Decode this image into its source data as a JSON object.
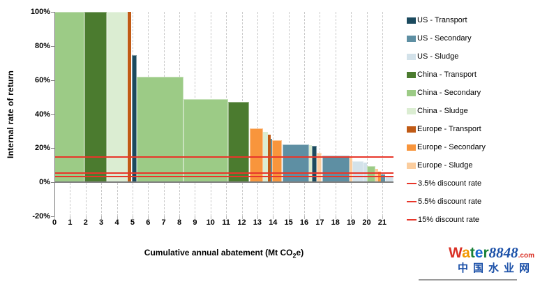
{
  "axes": {
    "y_title": "Internal rate of return",
    "x_title_prefix": "Cumulative annual abatement (Mt CO",
    "x_title_sub": "2",
    "x_title_suffix": "e)",
    "y_ticks": [
      {
        "label": "100%",
        "value": 100
      },
      {
        "label": "80%",
        "value": 80
      },
      {
        "label": "60%",
        "value": 60
      },
      {
        "label": "40%",
        "value": 40
      },
      {
        "label": "20%",
        "value": 20
      },
      {
        "label": "0%",
        "value": 0
      },
      {
        "label": "-20%",
        "value": -20
      }
    ],
    "x_ticks": [
      {
        "label": "0",
        "value": 0
      },
      {
        "label": "1",
        "value": 1
      },
      {
        "label": "2",
        "value": 2
      },
      {
        "label": "3",
        "value": 3
      },
      {
        "label": "4",
        "value": 4
      },
      {
        "label": "5",
        "value": 5
      },
      {
        "label": "6",
        "value": 6
      },
      {
        "label": "7",
        "value": 7
      },
      {
        "label": "8",
        "value": 8
      },
      {
        "label": "9",
        "value": 9
      },
      {
        "label": "10",
        "value": 10
      },
      {
        "label": "11",
        "value": 11
      },
      {
        "label": "12",
        "value": 12
      },
      {
        "label": "13",
        "value": 13
      },
      {
        "label": "14",
        "value": 14
      },
      {
        "label": "15",
        "value": 15
      },
      {
        "label": "16",
        "value": 16
      },
      {
        "label": "17",
        "value": 17
      },
      {
        "label": "18",
        "value": 18
      },
      {
        "label": "19",
        "value": 19
      },
      {
        "label": "20",
        "value": 20
      },
      {
        "label": "21",
        "value": 21
      }
    ]
  },
  "legend": {
    "items": [
      {
        "label": "US - Transport",
        "color": "#1B4A5E",
        "type": "swatch"
      },
      {
        "label": "US - Secondary",
        "color": "#5E8FA3",
        "type": "swatch"
      },
      {
        "label": "US - Sludge",
        "color": "#D3E2EA",
        "type": "swatch"
      },
      {
        "label": "China - Transport",
        "color": "#4B7B2F",
        "type": "swatch"
      },
      {
        "label": "China - Secondary",
        "color": "#9CCB86",
        "type": "swatch"
      },
      {
        "label": "China - Sludge",
        "color": "#DBEDD2",
        "type": "swatch"
      },
      {
        "label": "Europe - Transport",
        "color": "#C05A15",
        "type": "swatch"
      },
      {
        "label": "Europe - Secondary",
        "color": "#F8953C",
        "type": "swatch"
      },
      {
        "label": "Europe - Sludge",
        "color": "#FBCD9E",
        "type": "swatch"
      },
      {
        "label": "3.5% discount rate",
        "color": "#E8362A",
        "type": "line"
      },
      {
        "label": "5.5% discount rate",
        "color": "#E8362A",
        "type": "line"
      },
      {
        "label": "15% discount rate",
        "color": "#E8362A",
        "type": "line"
      }
    ]
  },
  "chart_data": {
    "type": "bar",
    "subtype": "variable-width-abatement-curve",
    "xlabel": "Cumulative annual abatement (Mt CO2e)",
    "ylabel": "Internal rate of return (%)",
    "xlim": [
      0,
      21.72
    ],
    "ylim": [
      -20,
      100
    ],
    "grid": "vertical-dashed",
    "legend_position": "right",
    "series_colors": {
      "US - Transport": "#1B4A5E",
      "US - Secondary": "#5E8FA3",
      "US - Sludge": "#D3E2EA",
      "China - Transport": "#4B7B2F",
      "China - Secondary": "#9CCB86",
      "China - Sludge": "#DBEDD2",
      "Europe - Transport": "#C05A15",
      "Europe - Secondary": "#F8953C",
      "Europe - Sludge": "#FBCD9E"
    },
    "bars": [
      {
        "series": "China - Secondary",
        "from": 0,
        "to": 1.91,
        "irr": 100
      },
      {
        "series": "China - Transport",
        "from": 1.91,
        "to": 3.36,
        "irr": 100
      },
      {
        "series": "China - Sludge",
        "from": 3.36,
        "to": 4.71,
        "irr": 100
      },
      {
        "series": "Europe - Transport",
        "from": 4.71,
        "to": 4.94,
        "irr": 100
      },
      {
        "series": "US - Transport",
        "from": 4.94,
        "to": 5.28,
        "irr": 74.5
      },
      {
        "series": "China - Secondary",
        "from": 5.28,
        "to": 8.28,
        "irr": 62
      },
      {
        "series": "China - Secondary",
        "from": 8.28,
        "to": 11.12,
        "irr": 49
      },
      {
        "series": "China - Transport",
        "from": 11.12,
        "to": 12.49,
        "irr": 47
      },
      {
        "series": "Europe - Secondary",
        "from": 12.49,
        "to": 13.38,
        "irr": 31.5
      },
      {
        "series": "China - Sludge",
        "from": 13.38,
        "to": 13.66,
        "irr": 29.5
      },
      {
        "series": "Europe - Transport",
        "from": 13.66,
        "to": 13.84,
        "irr": 28
      },
      {
        "series": "US - Secondary",
        "from": 13.84,
        "to": 13.95,
        "irr": 25.5
      },
      {
        "series": "Europe - Secondary",
        "from": 13.95,
        "to": 14.59,
        "irr": 24.5
      },
      {
        "series": "US - Secondary",
        "from": 14.59,
        "to": 16.29,
        "irr": 22.4
      },
      {
        "series": "China - Sludge",
        "from": 16.29,
        "to": 16.47,
        "irr": 22
      },
      {
        "series": "US - Transport",
        "from": 16.47,
        "to": 16.79,
        "irr": 21.5
      },
      {
        "series": "Europe - Sludge",
        "from": 16.79,
        "to": 17.14,
        "irr": 17.4
      },
      {
        "series": "US - Secondary",
        "from": 17.14,
        "to": 18.92,
        "irr": 15.7
      },
      {
        "series": "Europe - Sludge",
        "from": 18.92,
        "to": 19.07,
        "irr": 14.3
      },
      {
        "series": "US - Sludge",
        "from": 19.07,
        "to": 19.79,
        "irr": 12.5
      },
      {
        "series": "US - Sludge",
        "from": 19.79,
        "to": 20.01,
        "irr": 11.5
      },
      {
        "series": "China - Secondary",
        "from": 20.01,
        "to": 20.55,
        "irr": 9.5
      },
      {
        "series": "Europe - Sludge",
        "from": 20.55,
        "to": 20.73,
        "irr": 8
      },
      {
        "series": "Europe - Secondary",
        "from": 20.73,
        "to": 20.91,
        "irr": 6.3
      },
      {
        "series": "US - Secondary",
        "from": 20.91,
        "to": 21.18,
        "irr": 4.7
      },
      {
        "series": "US - Sludge",
        "from": 21.18,
        "to": 21.72,
        "irr": 3.2
      }
    ],
    "discount_lines": [
      {
        "label": "3.5% discount rate",
        "value": 3.5
      },
      {
        "label": "5.5% discount rate",
        "value": 5.5
      },
      {
        "label": "15% discount rate",
        "value": 15
      }
    ],
    "discount_line_color": "#E8362A"
  },
  "watermark": {
    "water_letters": [
      {
        "ch": "W",
        "color": "#D93025"
      },
      {
        "ch": "a",
        "color": "#F29900"
      },
      {
        "ch": "t",
        "color": "#188038"
      },
      {
        "ch": "e",
        "color": "#1967D2"
      },
      {
        "ch": "r",
        "color": "#188038"
      }
    ],
    "number": "8848",
    "number_color": "#1B50A8",
    "tld": ".com",
    "tld_color": "#D93025",
    "chinese": "中国水业网",
    "chinese_color": "#1B50A8"
  }
}
